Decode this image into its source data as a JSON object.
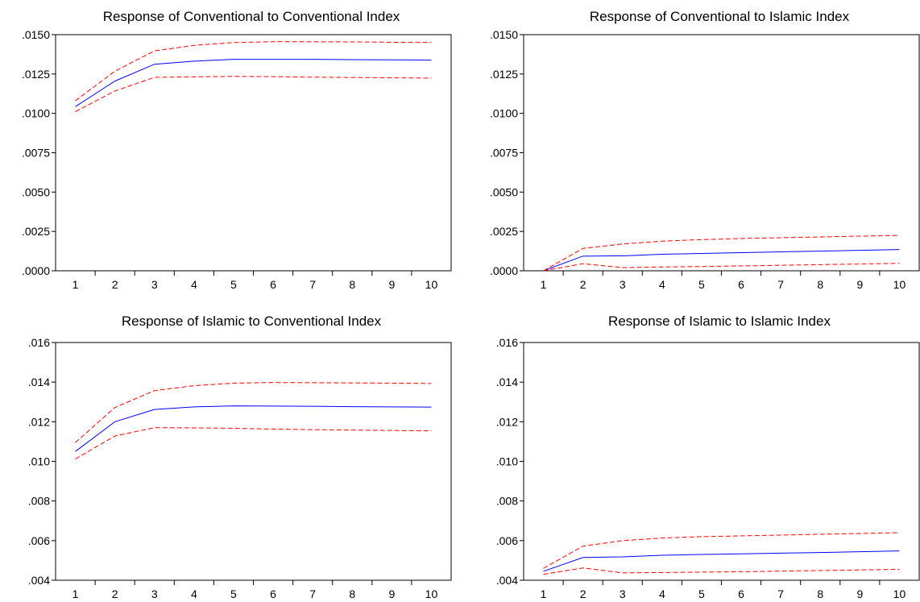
{
  "chart_data": [
    {
      "type": "line",
      "title": "Response of Conventional to Conventional Index",
      "x": [
        1,
        2,
        3,
        4,
        5,
        6,
        7,
        8,
        9,
        10
      ],
      "ylim": [
        0.0,
        0.015
      ],
      "yticks": [
        0.0,
        0.0025,
        0.005,
        0.0075,
        0.01,
        0.0125,
        0.015
      ],
      "ytick_labels": [
        ".0000",
        ".0025",
        ".0050",
        ".0075",
        ".0100",
        ".0125",
        ".0150"
      ],
      "grid": false,
      "series": [
        {
          "role": "response",
          "color": "#0000ff",
          "style": "solid",
          "values": [
            0.01043,
            0.01205,
            0.01312,
            0.01332,
            0.01343,
            0.01343,
            0.01343,
            0.01341,
            0.0134,
            0.01338
          ]
        },
        {
          "role": "upper",
          "color": "#ff0000",
          "style": "dashed",
          "values": [
            0.0108,
            0.01268,
            0.01397,
            0.01432,
            0.0145,
            0.01455,
            0.01455,
            0.01454,
            0.01452,
            0.0145
          ]
        },
        {
          "role": "lower",
          "color": "#ff0000",
          "style": "dashed",
          "values": [
            0.01011,
            0.01142,
            0.01229,
            0.01232,
            0.01235,
            0.01233,
            0.0123,
            0.01228,
            0.01226,
            0.01224
          ]
        }
      ]
    },
    {
      "type": "line",
      "title": "Response of Conventional to Islamic Index",
      "x": [
        1,
        2,
        3,
        4,
        5,
        6,
        7,
        8,
        9,
        10
      ],
      "ylim": [
        0.0,
        0.015
      ],
      "yticks": [
        0.0,
        0.0025,
        0.005,
        0.0075,
        0.01,
        0.0125,
        0.015
      ],
      "ytick_labels": [
        ".0000",
        ".0025",
        ".0050",
        ".0075",
        ".0100",
        ".0125",
        ".0150"
      ],
      "grid": false,
      "series": [
        {
          "role": "response",
          "color": "#0000ff",
          "style": "solid",
          "values": [
            0.0,
            0.00093,
            0.00095,
            0.00105,
            0.0011,
            0.00115,
            0.0012,
            0.00125,
            0.0013,
            0.00135
          ]
        },
        {
          "role": "upper",
          "color": "#ff0000",
          "style": "dashed",
          "values": [
            0.0,
            0.00142,
            0.0017,
            0.00188,
            0.00198,
            0.00205,
            0.0021,
            0.00215,
            0.0022,
            0.00225
          ]
        },
        {
          "role": "lower",
          "color": "#ff0000",
          "style": "dashed",
          "values": [
            0.0,
            0.00045,
            0.0002,
            0.00024,
            0.00027,
            0.00031,
            0.00035,
            0.00039,
            0.00043,
            0.00047
          ]
        }
      ]
    },
    {
      "type": "line",
      "title": "Response of Islamic to Conventional Index",
      "x": [
        1,
        2,
        3,
        4,
        5,
        6,
        7,
        8,
        9,
        10
      ],
      "ylim": [
        0.004,
        0.016
      ],
      "yticks": [
        0.004,
        0.006,
        0.008,
        0.01,
        0.012,
        0.014,
        0.016
      ],
      "ytick_labels": [
        ".004",
        ".006",
        ".008",
        ".010",
        ".012",
        ".014",
        ".016"
      ],
      "grid": false,
      "series": [
        {
          "role": "response",
          "color": "#0000ff",
          "style": "solid",
          "values": [
            0.0105,
            0.012,
            0.01262,
            0.01275,
            0.0128,
            0.01279,
            0.01278,
            0.01276,
            0.01275,
            0.01274
          ]
        },
        {
          "role": "upper",
          "color": "#ff0000",
          "style": "dashed",
          "values": [
            0.01095,
            0.01272,
            0.01357,
            0.01382,
            0.01395,
            0.01398,
            0.01397,
            0.01396,
            0.01395,
            0.01393
          ]
        },
        {
          "role": "lower",
          "color": "#ff0000",
          "style": "dashed",
          "values": [
            0.01012,
            0.01128,
            0.0117,
            0.01169,
            0.01167,
            0.01163,
            0.0116,
            0.01158,
            0.01156,
            0.01154
          ]
        }
      ]
    },
    {
      "type": "line",
      "title": "Response of Islamic to Islamic Index",
      "x": [
        1,
        2,
        3,
        4,
        5,
        6,
        7,
        8,
        9,
        10
      ],
      "ylim": [
        0.004,
        0.016
      ],
      "yticks": [
        0.004,
        0.006,
        0.008,
        0.01,
        0.012,
        0.014,
        0.016
      ],
      "ytick_labels": [
        ".004",
        ".006",
        ".008",
        ".010",
        ".012",
        ".014",
        ".016"
      ],
      "grid": false,
      "series": [
        {
          "role": "response",
          "color": "#0000ff",
          "style": "solid",
          "values": [
            0.00445,
            0.00515,
            0.00518,
            0.00526,
            0.0053,
            0.00533,
            0.00537,
            0.0054,
            0.00544,
            0.00548
          ]
        },
        {
          "role": "upper",
          "color": "#ff0000",
          "style": "dashed",
          "values": [
            0.0046,
            0.00572,
            0.006,
            0.00613,
            0.0062,
            0.00624,
            0.00628,
            0.00632,
            0.00636,
            0.0064
          ]
        },
        {
          "role": "lower",
          "color": "#ff0000",
          "style": "dashed",
          "values": [
            0.0043,
            0.00462,
            0.00437,
            0.00439,
            0.00441,
            0.00443,
            0.00446,
            0.00449,
            0.00452,
            0.00455
          ]
        }
      ]
    }
  ]
}
